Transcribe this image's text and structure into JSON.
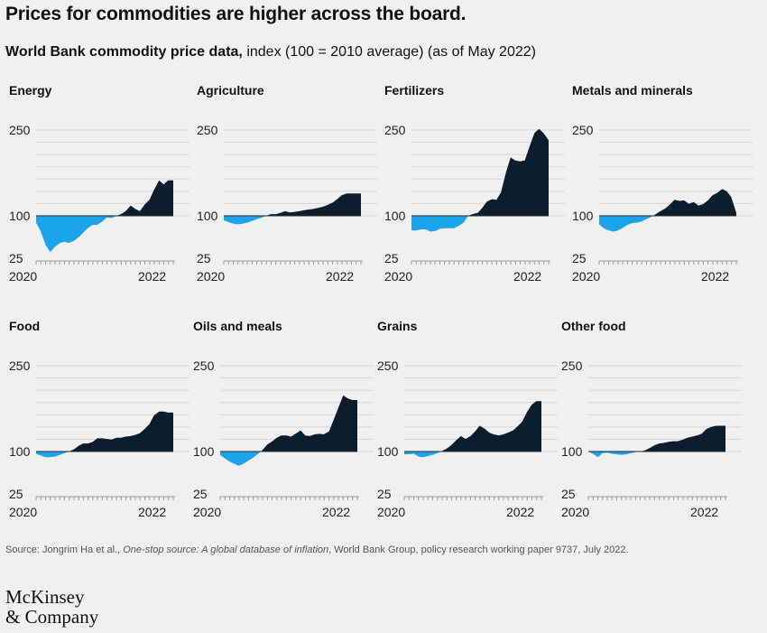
{
  "header": {
    "title": "Prices for commodities are higher across the board.",
    "subtitle_bold": "World Bank commodity price data,",
    "subtitle_rest": " index (100 = 2010 average) (as of May 2022)"
  },
  "colors": {
    "below": "#1aa4ec",
    "above": "#0b1e2d",
    "grid": "#d6d6d6",
    "axis": "#9a9a9a"
  },
  "footer": {
    "source_prefix": "Source: Jongrim Ha et al., ",
    "source_italic": "One-stop source: A global database of inflation",
    "source_suffix": ", World Bank Group, policy research working paper 9737, July 2022.",
    "logo_line1": "McKinsey",
    "logo_line2": "& Company"
  },
  "chart_data": [
    {
      "type": "area",
      "title": "Energy",
      "yticks": [
        25,
        100,
        250
      ],
      "ylim": [
        25,
        250
      ],
      "baseline": 100,
      "xticks": [
        "2020",
        "2022"
      ],
      "xlim": [
        2020.0,
        2022.42
      ],
      "x": [
        2020.0,
        2020.08,
        2020.17,
        2020.25,
        2020.33,
        2020.42,
        2020.5,
        2020.58,
        2020.67,
        2020.75,
        2020.83,
        2020.92,
        2021.0,
        2021.08,
        2021.17,
        2021.25,
        2021.33,
        2021.42,
        2021.5,
        2021.58,
        2021.67,
        2021.75,
        2021.83,
        2021.92,
        2022.0,
        2022.08,
        2022.17,
        2022.25,
        2022.33,
        2022.42
      ],
      "values": [
        88,
        73,
        48,
        36,
        45,
        52,
        54,
        52,
        56,
        62,
        70,
        79,
        84,
        84,
        90,
        97,
        96,
        100,
        103,
        108,
        118,
        112,
        108,
        120,
        128,
        145,
        162,
        155,
        162,
        162
      ]
    },
    {
      "type": "area",
      "title": "Agriculture",
      "yticks": [
        25,
        100,
        250
      ],
      "ylim": [
        25,
        250
      ],
      "baseline": 100,
      "xticks": [
        "2020",
        "2022"
      ],
      "xlim": [
        2020.0,
        2022.42
      ],
      "x": [
        2020.0,
        2020.08,
        2020.17,
        2020.25,
        2020.33,
        2020.42,
        2020.5,
        2020.58,
        2020.67,
        2020.75,
        2020.83,
        2020.92,
        2021.0,
        2021.08,
        2021.17,
        2021.25,
        2021.33,
        2021.42,
        2021.5,
        2021.58,
        2021.67,
        2021.75,
        2021.83,
        2021.92,
        2022.0,
        2022.08,
        2022.17,
        2022.25,
        2022.33,
        2022.42
      ],
      "values": [
        92,
        89,
        86,
        85,
        86,
        88,
        91,
        94,
        97,
        100,
        103,
        103,
        105,
        108,
        106,
        107,
        108,
        110,
        111,
        112,
        114,
        116,
        119,
        123,
        129,
        136,
        139,
        139,
        139,
        139
      ]
    },
    {
      "type": "area",
      "title": "Fertilizers",
      "yticks": [
        25,
        100,
        250
      ],
      "ylim": [
        25,
        250
      ],
      "baseline": 100,
      "xticks": [
        "2020",
        "2022"
      ],
      "xlim": [
        2020.0,
        2022.42
      ],
      "x": [
        2020.0,
        2020.08,
        2020.17,
        2020.25,
        2020.33,
        2020.42,
        2020.5,
        2020.58,
        2020.67,
        2020.75,
        2020.83,
        2020.92,
        2021.0,
        2021.08,
        2021.17,
        2021.25,
        2021.33,
        2021.42,
        2021.5,
        2021.58,
        2021.67,
        2021.75,
        2021.83,
        2021.92,
        2022.0,
        2022.08,
        2022.17,
        2022.25,
        2022.33,
        2022.42
      ],
      "values": [
        74,
        74,
        76,
        76,
        72,
        73,
        77,
        78,
        78,
        78,
        82,
        88,
        100,
        103,
        105,
        114,
        125,
        129,
        128,
        141,
        177,
        202,
        197,
        195,
        197,
        220,
        245,
        252,
        245,
        232
      ]
    },
    {
      "type": "area",
      "title": "Metals and minerals",
      "yticks": [
        25,
        100,
        250
      ],
      "ylim": [
        25,
        250
      ],
      "baseline": 100,
      "xticks": [
        "2020",
        "2022"
      ],
      "xlim": [
        2020.0,
        2022.42
      ],
      "x": [
        2020.0,
        2020.08,
        2020.17,
        2020.25,
        2020.33,
        2020.42,
        2020.5,
        2020.58,
        2020.67,
        2020.75,
        2020.83,
        2020.92,
        2021.0,
        2021.08,
        2021.17,
        2021.25,
        2021.33,
        2021.42,
        2021.5,
        2021.58,
        2021.67,
        2021.75,
        2021.83,
        2021.92,
        2022.0,
        2022.08,
        2022.17,
        2022.25,
        2022.33,
        2022.42
      ],
      "values": [
        85,
        78,
        74,
        72,
        74,
        79,
        84,
        87,
        88,
        90,
        94,
        98,
        103,
        108,
        113,
        120,
        128,
        126,
        127,
        121,
        124,
        118,
        120,
        127,
        136,
        140,
        147,
        143,
        133,
        105
      ]
    },
    {
      "type": "area",
      "title": "Food",
      "yticks": [
        25,
        100,
        250
      ],
      "ylim": [
        25,
        250
      ],
      "baseline": 100,
      "xticks": [
        "2020",
        "2022"
      ],
      "xlim": [
        2020.0,
        2022.42
      ],
      "x": [
        2020.0,
        2020.08,
        2020.17,
        2020.25,
        2020.33,
        2020.42,
        2020.5,
        2020.58,
        2020.67,
        2020.75,
        2020.83,
        2020.92,
        2021.0,
        2021.08,
        2021.17,
        2021.25,
        2021.33,
        2021.42,
        2021.5,
        2021.58,
        2021.67,
        2021.75,
        2021.83,
        2021.92,
        2022.0,
        2022.08,
        2022.17,
        2022.25,
        2022.33,
        2022.42
      ],
      "values": [
        96,
        93,
        90,
        90,
        91,
        94,
        97,
        100,
        104,
        110,
        114,
        114,
        117,
        123,
        123,
        122,
        121,
        124,
        124,
        126,
        127,
        129,
        132,
        140,
        148,
        163,
        170,
        170,
        168,
        168
      ]
    },
    {
      "type": "area",
      "title": "Oils and meals",
      "yticks": [
        25,
        100,
        250
      ],
      "ylim": [
        25,
        250
      ],
      "baseline": 100,
      "xticks": [
        "2020",
        "2022"
      ],
      "xlim": [
        2020.0,
        2022.42
      ],
      "x": [
        2020.0,
        2020.08,
        2020.17,
        2020.25,
        2020.33,
        2020.42,
        2020.5,
        2020.58,
        2020.67,
        2020.75,
        2020.83,
        2020.92,
        2021.0,
        2021.08,
        2021.17,
        2021.25,
        2021.33,
        2021.42,
        2021.5,
        2021.58,
        2021.67,
        2021.75,
        2021.83,
        2021.92,
        2022.0,
        2022.08,
        2022.17,
        2022.25,
        2022.33,
        2022.42
      ],
      "values": [
        94,
        88,
        82,
        78,
        75,
        79,
        84,
        89,
        96,
        103,
        112,
        118,
        124,
        128,
        128,
        126,
        131,
        137,
        128,
        127,
        130,
        131,
        130,
        135,
        155,
        175,
        198,
        193,
        190,
        190
      ]
    },
    {
      "type": "area",
      "title": "Grains",
      "yticks": [
        25,
        100,
        250
      ],
      "ylim": [
        25,
        250
      ],
      "baseline": 100,
      "xticks": [
        "2020",
        "2022"
      ],
      "xlim": [
        2020.0,
        2022.42
      ],
      "x": [
        2020.0,
        2020.08,
        2020.17,
        2020.25,
        2020.33,
        2020.42,
        2020.5,
        2020.58,
        2020.67,
        2020.75,
        2020.83,
        2020.92,
        2021.0,
        2021.08,
        2021.17,
        2021.25,
        2021.33,
        2021.42,
        2021.5,
        2021.58,
        2021.67,
        2021.75,
        2021.83,
        2021.92,
        2022.0,
        2022.08,
        2022.17,
        2022.25,
        2022.33,
        2022.42
      ],
      "values": [
        95,
        95,
        96,
        91,
        90,
        92,
        94,
        97,
        101,
        105,
        111,
        120,
        127,
        122,
        127,
        135,
        145,
        140,
        133,
        130,
        128,
        130,
        133,
        137,
        144,
        152,
        170,
        182,
        188,
        188
      ]
    },
    {
      "type": "area",
      "title": "Other food",
      "yticks": [
        25,
        100,
        250
      ],
      "ylim": [
        25,
        250
      ],
      "baseline": 100,
      "xticks": [
        "2020",
        "2022"
      ],
      "xlim": [
        2020.0,
        2022.42
      ],
      "x": [
        2020.0,
        2020.08,
        2020.17,
        2020.25,
        2020.33,
        2020.42,
        2020.5,
        2020.58,
        2020.67,
        2020.75,
        2020.83,
        2020.92,
        2021.0,
        2021.08,
        2021.17,
        2021.25,
        2021.33,
        2021.42,
        2021.5,
        2021.58,
        2021.67,
        2021.75,
        2021.83,
        2021.92,
        2022.0,
        2022.08,
        2022.17,
        2022.25,
        2022.33,
        2022.42
      ],
      "values": [
        100,
        96,
        90,
        97,
        98,
        96,
        95,
        94,
        95,
        97,
        99,
        100,
        102,
        106,
        111,
        114,
        115,
        117,
        118,
        118,
        121,
        124,
        126,
        128,
        131,
        139,
        143,
        145,
        145,
        145
      ]
    }
  ]
}
